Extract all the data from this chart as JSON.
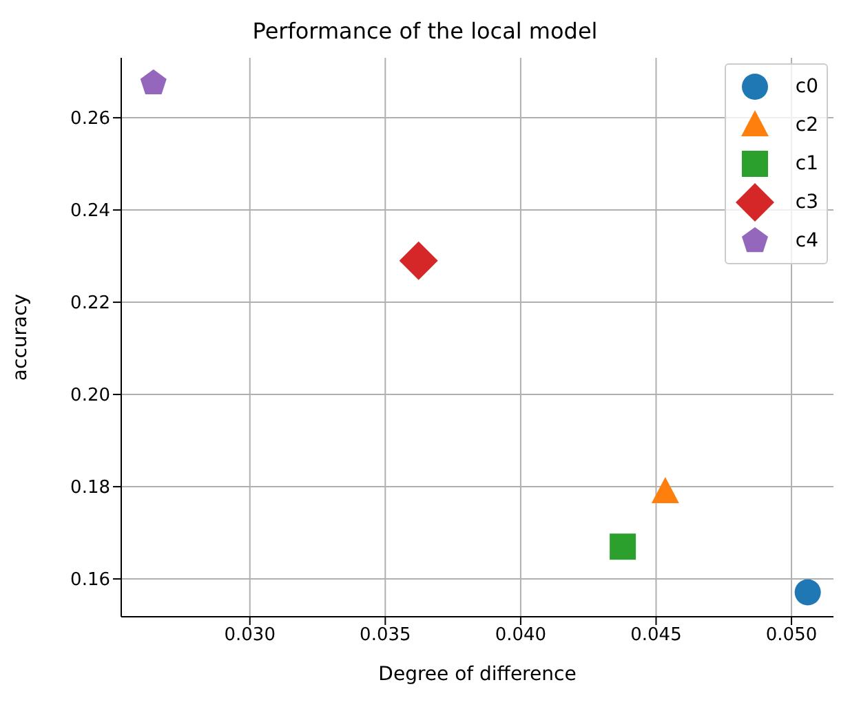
{
  "chart_data": {
    "type": "scatter",
    "title": "Performance of the local model",
    "xlabel": "Degree of difference",
    "ylabel": "accuracy",
    "xlim": [
      0.02525,
      0.05155
    ],
    "xticks": [
      {
        "value": 0.03,
        "label": "0.030"
      },
      {
        "value": 0.035,
        "label": "0.035"
      },
      {
        "value": 0.04,
        "label": "0.040"
      },
      {
        "value": 0.045,
        "label": "0.045"
      },
      {
        "value": 0.05,
        "label": "0.050"
      }
    ],
    "ylim": [
      0.1518,
      0.273
    ],
    "yticks": [
      {
        "value": 0.16,
        "label": "0.16"
      },
      {
        "value": 0.18,
        "label": "0.18"
      },
      {
        "value": 0.2,
        "label": "0.20"
      },
      {
        "value": 0.22,
        "label": "0.22"
      },
      {
        "value": 0.24,
        "label": "0.24"
      },
      {
        "value": 0.26,
        "label": "0.26"
      }
    ],
    "grid": true,
    "legend": "top right",
    "series": [
      {
        "name": "c0",
        "color": "#1f77b4",
        "marker": "circle",
        "x": [
          0.0506
        ],
        "values": [
          0.1571
        ]
      },
      {
        "name": "c2",
        "color": "#ff7f0e",
        "marker": "triangle",
        "x": [
          0.04534
        ],
        "values": [
          0.1788
        ]
      },
      {
        "name": "c1",
        "color": "#2ca02c",
        "marker": "square",
        "x": [
          0.04377
        ],
        "values": [
          0.167
        ]
      },
      {
        "name": "c3",
        "color": "#d62728",
        "marker": "diamond",
        "x": [
          0.03623
        ],
        "values": [
          0.229
        ]
      },
      {
        "name": "c4",
        "color": "#9467bd",
        "x": [
          0.02644
        ],
        "values": [
          0.2675
        ]
      }
    ]
  }
}
